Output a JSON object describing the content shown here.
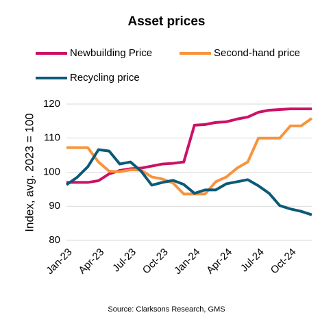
{
  "chart_data": {
    "type": "line",
    "title": "Asset prices",
    "y_label": "Index, avg. 2023 = 100",
    "source": "Source: Clarksons Research, GMS",
    "categories": [
      "Jan-23",
      null,
      null,
      "Apr-23",
      null,
      null,
      "Jul-23",
      null,
      null,
      "Oct-23",
      null,
      null,
      "Jan-24",
      null,
      null,
      "Apr-24",
      null,
      null,
      "Jul-24",
      null,
      null,
      "Oct-24",
      null,
      null
    ],
    "series": [
      {
        "name": "Newbuilding Price",
        "color": "#cc1166",
        "values": [
          97,
          97,
          97,
          97.5,
          99.5,
          100.5,
          101,
          101.2,
          101.8,
          102.4,
          102.6,
          103,
          113.8,
          114,
          114.6,
          114.8,
          115.6,
          116.2,
          117.6,
          118.2,
          118.4,
          118.6,
          118.6,
          118.6
        ]
      },
      {
        "name": "Second-hand price",
        "color": "#f7943d",
        "values": [
          107.2,
          107.2,
          107.2,
          103,
          100.3,
          100.1,
          100.7,
          100.6,
          98.6,
          98,
          96.8,
          93.6,
          93.6,
          93.6,
          97.2,
          98.6,
          101.2,
          103,
          110,
          110,
          110,
          113.6,
          113.6,
          115.8
        ]
      },
      {
        "name": "Recycling price",
        "color": "#0b5a78",
        "values": [
          96.3,
          98.5,
          101.6,
          106.6,
          106.2,
          102.4,
          103,
          100.3,
          96.2,
          97,
          97.6,
          96.4,
          93.8,
          94.8,
          94.8,
          96.6,
          97.2,
          97.8,
          96,
          93.8,
          90.2,
          89.2,
          88.5,
          87.5
        ]
      }
    ],
    "ylim": [
      80,
      120
    ],
    "yticks": [
      80,
      90,
      100,
      110,
      120
    ],
    "grid": true
  }
}
